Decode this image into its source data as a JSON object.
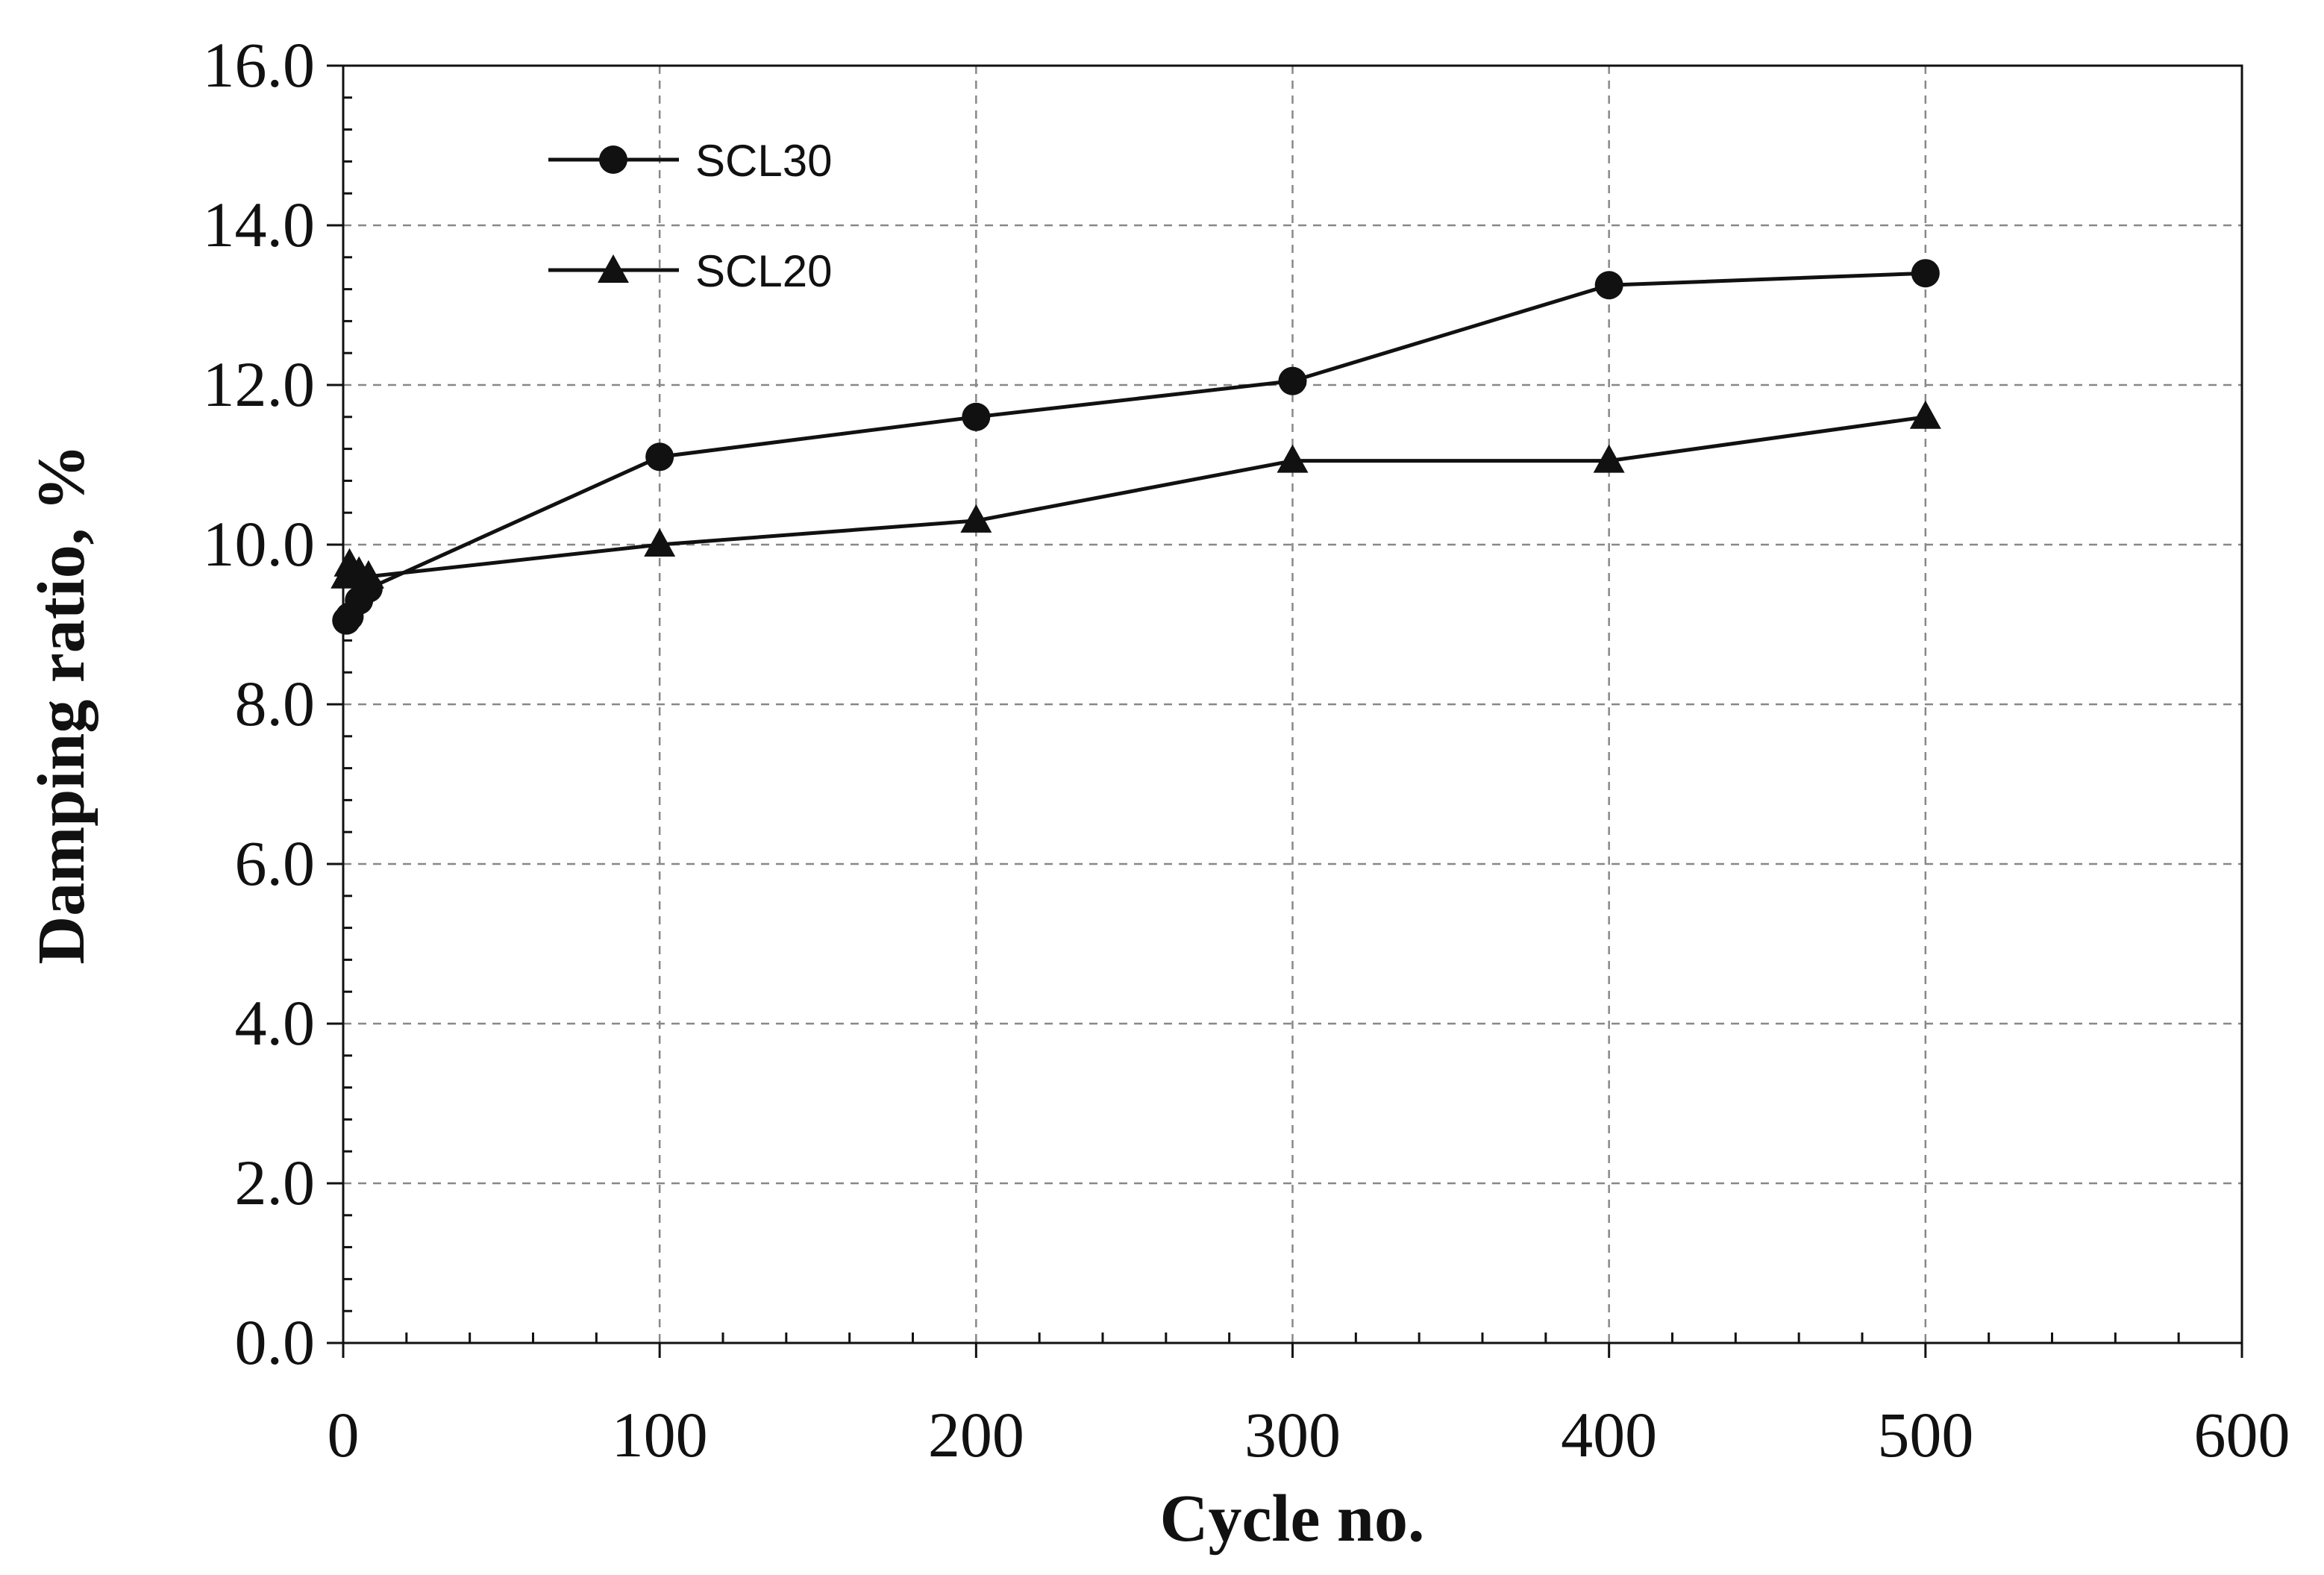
{
  "chart_data": {
    "type": "line",
    "title": "",
    "xlabel": "Cycle no.",
    "ylabel": "Damping ratio, %",
    "xlim": [
      0,
      600
    ],
    "ylim": [
      0,
      16
    ],
    "x_ticks": [
      "0",
      "100",
      "200",
      "300",
      "400",
      "500",
      "600"
    ],
    "y_ticks": [
      "0.0",
      "2.0",
      "4.0",
      "6.0",
      "8.0",
      "10.0",
      "12.0",
      "14.0",
      "16.0"
    ],
    "grid": true,
    "legend_position": "top-left",
    "series": [
      {
        "name": "SCL30",
        "marker": "circle",
        "x": [
          1,
          2,
          5,
          8,
          100,
          200,
          300,
          400,
          500
        ],
        "y": [
          9.05,
          9.1,
          9.3,
          9.45,
          11.1,
          11.6,
          12.05,
          13.25,
          13.4
        ]
      },
      {
        "name": "SCL20",
        "marker": "triangle",
        "x": [
          1,
          2,
          5,
          8,
          100,
          200,
          300,
          400,
          500
        ],
        "y": [
          9.6,
          9.75,
          9.65,
          9.6,
          10.0,
          10.3,
          11.05,
          11.05,
          11.6
        ]
      }
    ],
    "colors": {
      "line": "#111111",
      "grid": "#888888",
      "background": "#ffffff"
    }
  }
}
